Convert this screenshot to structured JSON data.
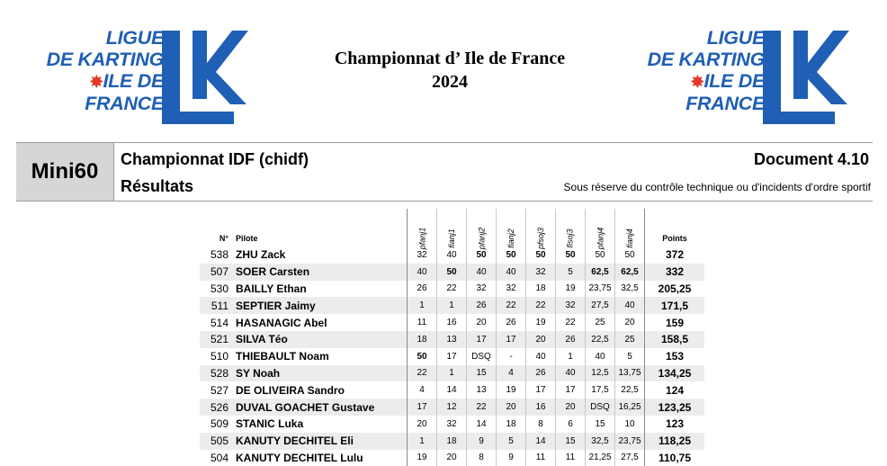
{
  "logo": {
    "lines": [
      "LIGUE",
      "DE KARTING",
      "ILE DE",
      "FRANCE"
    ],
    "star": "✸",
    "colors": {
      "blue": "#1f5fb5",
      "red": "#e03a2a"
    }
  },
  "title": {
    "line1": "Championnat d’ Ile de France",
    "line2": "2024"
  },
  "header": {
    "category": "Mini60",
    "championship": "Championnat IDF (chidf)",
    "results_label": "Résultats",
    "document": "Document 4.10",
    "disclaimer": "Sous réserve du contrôle technique ou d'incidents d'ordre sportif"
  },
  "table": {
    "headers": {
      "number": "N°",
      "pilot": "Pilote",
      "races": [
        "pfanj1",
        "fianj1",
        "pfanj2",
        "fianj2",
        "pfsoj3",
        "fisoj3",
        "pfanj4",
        "fianj4"
      ],
      "points": "Points"
    },
    "rows": [
      {
        "number": "538",
        "pilot": "ZHU Zack",
        "races": [
          "32",
          "40",
          "50",
          "50",
          "50",
          "50",
          "50",
          "50"
        ],
        "bold": [
          false,
          false,
          true,
          true,
          true,
          true,
          false,
          false
        ],
        "points": "372"
      },
      {
        "number": "507",
        "pilot": "SOER Carsten",
        "races": [
          "40",
          "50",
          "40",
          "40",
          "32",
          "5",
          "62,5",
          "62,5"
        ],
        "bold": [
          false,
          true,
          false,
          false,
          false,
          false,
          true,
          true
        ],
        "points": "332"
      },
      {
        "number": "530",
        "pilot": "BAILLY Ethan",
        "races": [
          "26",
          "22",
          "32",
          "32",
          "18",
          "19",
          "23,75",
          "32,5"
        ],
        "bold": [
          false,
          false,
          false,
          false,
          false,
          false,
          false,
          false
        ],
        "points": "205,25"
      },
      {
        "number": "511",
        "pilot": "SEPTIER Jaimy",
        "races": [
          "1",
          "1",
          "26",
          "22",
          "22",
          "32",
          "27,5",
          "40"
        ],
        "bold": [
          false,
          false,
          false,
          false,
          false,
          false,
          false,
          false
        ],
        "points": "171,5"
      },
      {
        "number": "514",
        "pilot": "HASANAGIC Abel",
        "races": [
          "11",
          "16",
          "20",
          "26",
          "19",
          "22",
          "25",
          "20"
        ],
        "bold": [
          false,
          false,
          false,
          false,
          false,
          false,
          false,
          false
        ],
        "points": "159"
      },
      {
        "number": "521",
        "pilot": "SILVA Téo",
        "races": [
          "18",
          "13",
          "17",
          "17",
          "20",
          "26",
          "22,5",
          "25"
        ],
        "bold": [
          false,
          false,
          false,
          false,
          false,
          false,
          false,
          false
        ],
        "points": "158,5"
      },
      {
        "number": "510",
        "pilot": "THIEBAULT Noam",
        "races": [
          "50",
          "17",
          "DSQ",
          "-",
          "40",
          "1",
          "40",
          "5"
        ],
        "bold": [
          true,
          false,
          false,
          false,
          false,
          false,
          false,
          false
        ],
        "points": "153"
      },
      {
        "number": "528",
        "pilot": "SY Noah",
        "races": [
          "22",
          "1",
          "15",
          "4",
          "26",
          "40",
          "12,5",
          "13,75"
        ],
        "bold": [
          false,
          false,
          false,
          false,
          false,
          false,
          false,
          false
        ],
        "points": "134,25"
      },
      {
        "number": "527",
        "pilot": "DE OLIVEIRA Sandro",
        "races": [
          "4",
          "14",
          "13",
          "19",
          "17",
          "17",
          "17,5",
          "22,5"
        ],
        "bold": [
          false,
          false,
          false,
          false,
          false,
          false,
          false,
          false
        ],
        "points": "124"
      },
      {
        "number": "526",
        "pilot": "DUVAL GOACHET Gustave",
        "races": [
          "17",
          "12",
          "22",
          "20",
          "16",
          "20",
          "DSQ",
          "16,25"
        ],
        "bold": [
          false,
          false,
          false,
          false,
          false,
          false,
          false,
          false
        ],
        "points": "123,25"
      },
      {
        "number": "509",
        "pilot": "STANIC Luka",
        "races": [
          "20",
          "32",
          "14",
          "18",
          "8",
          "6",
          "15",
          "10"
        ],
        "bold": [
          false,
          false,
          false,
          false,
          false,
          false,
          false,
          false
        ],
        "points": "123"
      },
      {
        "number": "505",
        "pilot": "KANUTY DECHITEL Eli",
        "races": [
          "1",
          "18",
          "9",
          "5",
          "14",
          "15",
          "32,5",
          "23,75"
        ],
        "bold": [
          false,
          false,
          false,
          false,
          false,
          false,
          false,
          false
        ],
        "points": "118,25"
      },
      {
        "number": "504",
        "pilot": "KANUTY DECHITEL Lulu",
        "races": [
          "19",
          "20",
          "8",
          "9",
          "11",
          "11",
          "21,25",
          "27,5"
        ],
        "bold": [
          false,
          false,
          false,
          false,
          false,
          false,
          false,
          false
        ],
        "points": "110,75"
      }
    ]
  }
}
